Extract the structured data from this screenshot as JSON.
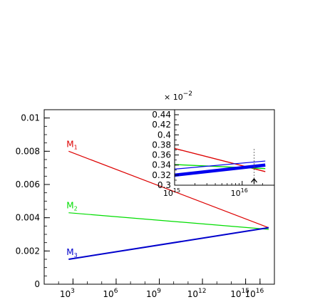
{
  "chart_data": [
    {
      "type": "line",
      "role": "main",
      "x_scale": "log",
      "xlim": [
        10,
        1e+17
      ],
      "ylim": [
        0,
        0.0105
      ],
      "x_ticks": [
        {
          "value": 1000,
          "base": "10",
          "exp": "3"
        },
        {
          "value": 1000000,
          "base": "10",
          "exp": "6"
        },
        {
          "value": 1000000000,
          "base": "10",
          "exp": "9"
        },
        {
          "value": 1000000000000,
          "base": "10",
          "exp": "12"
        },
        {
          "value": 1000000000000000,
          "base": "10",
          "exp": "15"
        },
        {
          "value": 10000000000000000,
          "base": "10",
          "exp": "16"
        }
      ],
      "y_ticks": [
        {
          "value": 0,
          "label": "0"
        },
        {
          "value": 0.002,
          "label": "0.002"
        },
        {
          "value": 0.004,
          "label": "0.004"
        },
        {
          "value": 0.006,
          "label": "0.006"
        },
        {
          "value": 0.008,
          "label": "0.008"
        },
        {
          "value": 0.01,
          "label": "0.01"
        }
      ],
      "series": [
        {
          "name": "M",
          "sub": "1",
          "color": "#dd0000",
          "x": [
            500,
            4e+16
          ],
          "y": [
            0.008,
            0.0034
          ],
          "width": 1.2
        },
        {
          "name": "M",
          "sub": "2",
          "color": "#00dd00",
          "x": [
            500,
            4e+16
          ],
          "y": [
            0.0043,
            0.0033
          ],
          "width": 1.2
        },
        {
          "name": "M",
          "sub": "3",
          "color": "#0000cc",
          "x": [
            500,
            4e+16
          ],
          "y": [
            0.0015,
            0.0034
          ],
          "width": 2
        }
      ]
    },
    {
      "type": "line",
      "role": "inset",
      "x_scale": "log",
      "xlim": [
        1000000000000000.0,
        3e+16
      ],
      "ylim": [
        0.3,
        0.45
      ],
      "multiplier": {
        "prefix": "× 10",
        "exp": "−2"
      },
      "x_ticks": [
        {
          "value": 1000000000000000.0,
          "base": "10",
          "exp": "15"
        },
        {
          "value": 1e+16,
          "base": "10",
          "exp": "16"
        }
      ],
      "y_ticks": [
        {
          "value": 0.3,
          "label": "0.3"
        },
        {
          "value": 0.32,
          "label": "0.32"
        },
        {
          "value": 0.34,
          "label": "0.34"
        },
        {
          "value": 0.36,
          "label": "0.36"
        },
        {
          "value": 0.38,
          "label": "0.38"
        },
        {
          "value": 0.4,
          "label": "0.4"
        },
        {
          "value": 0.42,
          "label": "0.42"
        },
        {
          "value": 0.44,
          "label": "0.44"
        }
      ],
      "series": [
        {
          "color": "#dd0000",
          "x": [
            1000000000000000.0,
            2.2e+16
          ],
          "y": [
            0.373,
            0.327
          ],
          "width": 1.4
        },
        {
          "color": "#00dd00",
          "x": [
            1000000000000000.0,
            2.2e+16
          ],
          "y": [
            0.341,
            0.333
          ],
          "width": 1.4
        },
        {
          "color": "#0000ee",
          "x": [
            1000000000000000.0,
            2.2e+16
          ],
          "y": [
            0.32,
            0.34
          ],
          "width": 4.5
        },
        {
          "color": "#0000ee",
          "x": [
            1000000000000000.0,
            2.2e+16
          ],
          "y": [
            0.332,
            0.348
          ],
          "width": 1.2
        }
      ],
      "marker": {
        "x": 1.5e+16,
        "label": "arrow-up"
      }
    }
  ]
}
